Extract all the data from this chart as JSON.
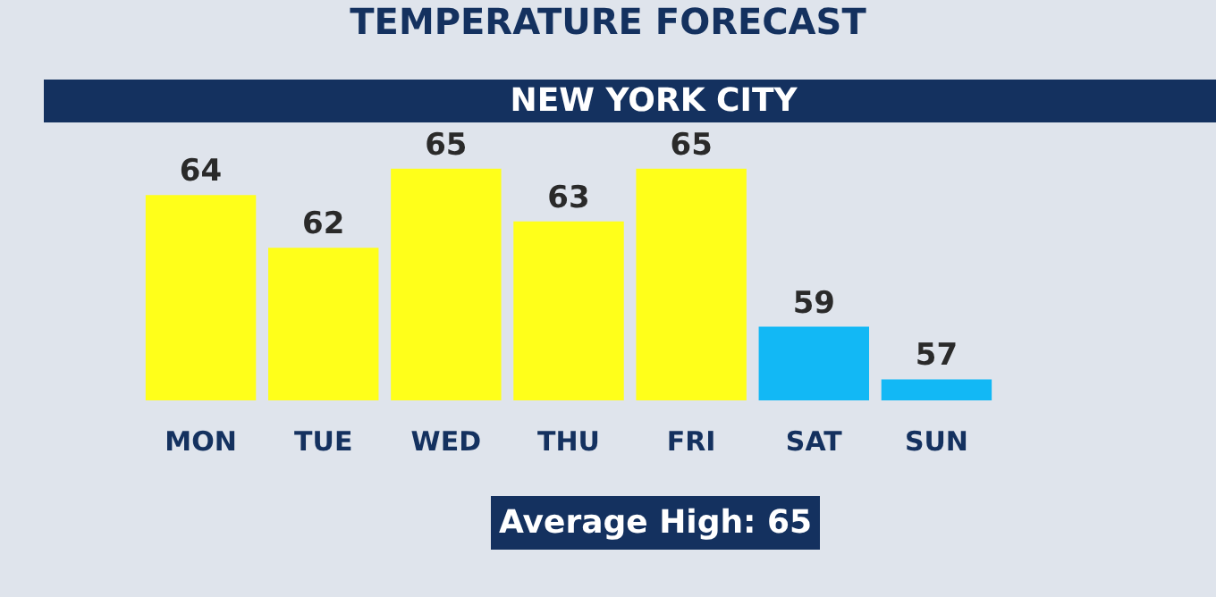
{
  "chart_data": {
    "type": "bar",
    "title": "TEMPERATURE FORECAST",
    "subtitle": "NEW YORK CITY",
    "categories": [
      "MON",
      "TUE",
      "WED",
      "THU",
      "FRI",
      "SAT",
      "SUN"
    ],
    "values": [
      64,
      62,
      65,
      63,
      65,
      59,
      57
    ],
    "colors": [
      "#ffff1a",
      "#ffff1a",
      "#ffff1a",
      "#ffff1a",
      "#ffff1a",
      "#12b8f5",
      "#12b8f5"
    ],
    "data_labels": true,
    "tick_labels": "x",
    "annotations": [
      "Average High: 65"
    ]
  }
}
